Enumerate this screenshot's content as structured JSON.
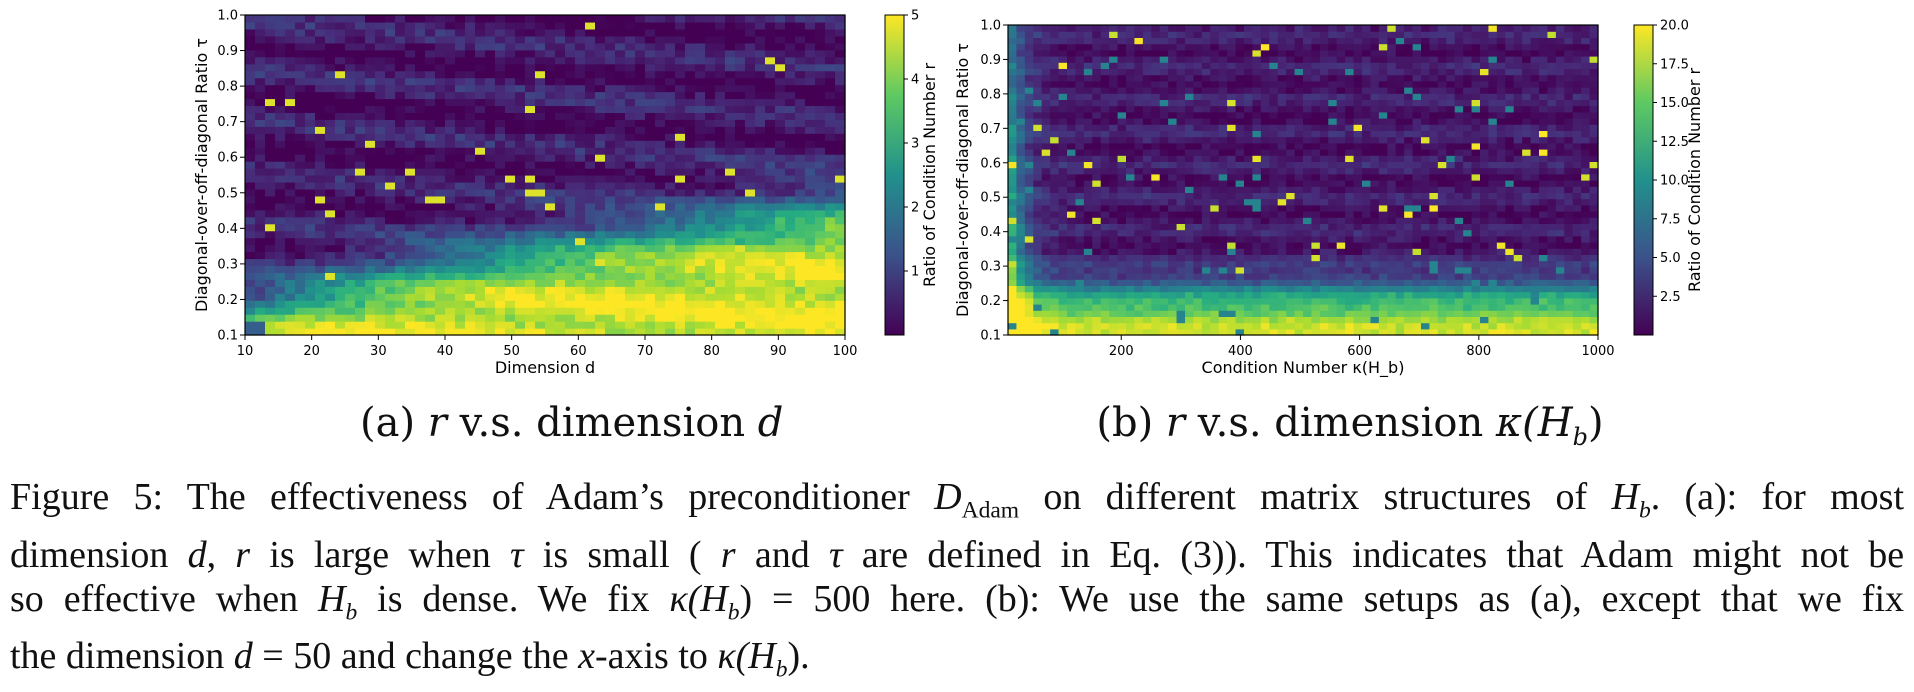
{
  "chart_data": [
    {
      "type": "heatmap",
      "xlabel": "Dimension d",
      "ylabel": "Diagonal-over-off-diagonal Ratio τ",
      "xlim": [
        10,
        100
      ],
      "ylim": [
        0.1,
        1.0
      ],
      "xticks": [
        "10",
        "20",
        "30",
        "40",
        "50",
        "60",
        "70",
        "80",
        "90",
        "100"
      ],
      "yticks": [
        "0.1",
        "0.2",
        "0.3",
        "0.4",
        "0.5",
        "0.6",
        "0.7",
        "0.8",
        "0.9",
        "1.0"
      ],
      "colorbar_label": "Ratio of Condition Number r",
      "colorbar_range": [
        0,
        5
      ],
      "colorbar_ticks": [
        "1",
        "2",
        "3",
        "4",
        "5"
      ],
      "colormap": "viridis",
      "grid": false,
      "trend": "r is large (≈4–5) for small τ (≈0.1–0.3) and small (≈0–1) for large τ; the high-r band widens as d increases"
    },
    {
      "type": "heatmap",
      "xlabel": "Condition Number κ(H_b)",
      "ylabel": "Diagonal-over-off-diagonal Ratio τ",
      "xlim": [
        10,
        1000
      ],
      "ylim": [
        0.1,
        1.0
      ],
      "xticks": [
        "200",
        "400",
        "600",
        "800",
        "1000"
      ],
      "yticks": [
        "0.1",
        "0.2",
        "0.3",
        "0.4",
        "0.5",
        "0.6",
        "0.7",
        "0.8",
        "0.9",
        "1.0"
      ],
      "colorbar_label": "Ratio of Condition Number r",
      "colorbar_range": [
        0,
        20
      ],
      "colorbar_ticks": [
        "2.5",
        "5.0",
        "7.5",
        "10.0",
        "12.5",
        "15.0",
        "17.5",
        "20.0"
      ],
      "colormap": "viridis",
      "grid": false,
      "trend": "r is high (≈15–20) for τ below ≈0.25 and near the smallest κ; mostly low (≈0–5) elsewhere"
    }
  ],
  "subcaptions": {
    "a": {
      "label": "(a)",
      "var": "r",
      "text": "v.s. dimension",
      "target": "d"
    },
    "b": {
      "label": "(b)",
      "var": "r",
      "text": "v.s. dimension",
      "target": "κ(H",
      "target_sub": "b",
      "target_close": ")"
    }
  },
  "caption": {
    "l1_a": "Figure 5: The effectiveness of Adam’s preconditioner",
    "l1_D": "D",
    "l1_Dsub": "Adam",
    "l1_b": "on different matrix structures of",
    "l1_H": "H",
    "l1_Hsub": "b",
    "l1_c": ". (a): for most",
    "l2_a": "dimension",
    "l2_d": "d",
    "l2_b": ",",
    "l2_r": "r",
    "l2_c": "is large when",
    "l2_tau": "τ",
    "l2_e": "is small (",
    "l2_r2": "r",
    "l2_f": "and",
    "l2_tau2": "τ",
    "l2_g": "are defined in Eq. (3)). This indicates that Adam might not be",
    "l3_a": "so effective when",
    "l3_H": "H",
    "l3_Hsub": "b",
    "l3_b": "is dense. We fix",
    "l3_kappa": "κ(H",
    "l3_ksub": "b",
    "l3_kclose": ") = 500",
    "l3_c": "here. (b): We use the same setups as (a), except that we fix",
    "l4_a": "the dimension",
    "l4_d": "d",
    "l4_b": "= 50 and change the",
    "l4_x": "x",
    "l4_c": "-axis to",
    "l4_kappa": "κ(H",
    "l4_ksub": "b",
    "l4_kclose": ")."
  }
}
